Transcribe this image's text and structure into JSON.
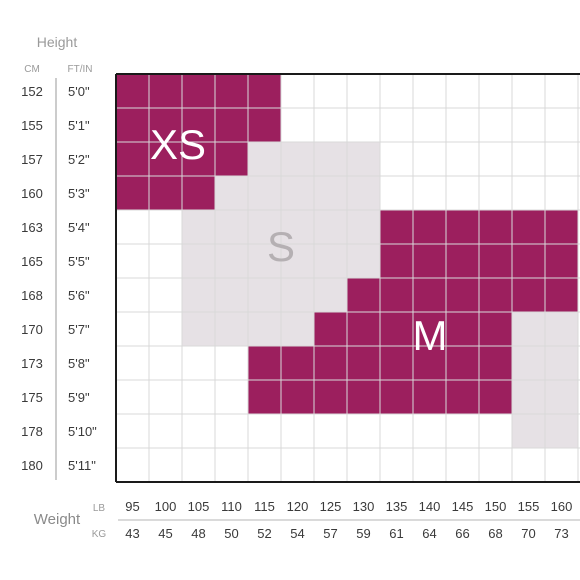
{
  "chart_data": {
    "type": "heatmap",
    "title": "",
    "y_axis": {
      "label": "Height",
      "unit_labels": [
        "CM",
        "FT/IN"
      ],
      "cm": [
        "152",
        "155",
        "157",
        "160",
        "163",
        "165",
        "168",
        "170",
        "173",
        "175",
        "178",
        "180"
      ],
      "ft_in": [
        "5'0\"",
        "5'1\"",
        "5'2\"",
        "5'3\"",
        "5'4\"",
        "5'5\"",
        "5'6\"",
        "5'7\"",
        "5'8\"",
        "5'9\"",
        "5'10\"",
        "5'11\""
      ]
    },
    "x_axis": {
      "label": "Weight",
      "unit_labels": [
        "LB",
        "KG"
      ],
      "lb": [
        "95",
        "100",
        "105",
        "110",
        "115",
        "120",
        "125",
        "130",
        "135",
        "140",
        "145",
        "150",
        "155",
        "160"
      ],
      "kg": [
        "43",
        "45",
        "48",
        "50",
        "52",
        "54",
        "57",
        "59",
        "61",
        "64",
        "66",
        "68",
        "70",
        "73"
      ]
    },
    "grid": true,
    "regions": [
      {
        "name": "XS",
        "color": "#9c1f5e",
        "text_color": "#ffffff",
        "rows": [
          {
            "height": "152",
            "lb_from": "95",
            "lb_to": "115"
          },
          {
            "height": "155",
            "lb_from": "95",
            "lb_to": "115"
          },
          {
            "height": "157",
            "lb_from": "95",
            "lb_to": "110"
          },
          {
            "height": "160",
            "lb_from": "95",
            "lb_to": "105"
          }
        ]
      },
      {
        "name": "S",
        "color": "#e6e1e5",
        "text_color": "#b5b0b3",
        "rows": [
          {
            "height": "157",
            "lb_from": "115",
            "lb_to": "130"
          },
          {
            "height": "160",
            "lb_from": "110",
            "lb_to": "130"
          },
          {
            "height": "163",
            "lb_from": "105",
            "lb_to": "130"
          },
          {
            "height": "165",
            "lb_from": "105",
            "lb_to": "130"
          },
          {
            "height": "168",
            "lb_from": "105",
            "lb_to": "125"
          },
          {
            "height": "170",
            "lb_from": "105",
            "lb_to": "120"
          }
        ]
      },
      {
        "name": "M",
        "color": "#9c1f5e",
        "text_color": "#ffffff",
        "rows": [
          {
            "height": "163",
            "lb_from": "135",
            "lb_to": "160"
          },
          {
            "height": "165",
            "lb_from": "135",
            "lb_to": "160"
          },
          {
            "height": "168",
            "lb_from": "130",
            "lb_to": "160"
          },
          {
            "height": "170",
            "lb_from": "125",
            "lb_to": "150"
          },
          {
            "height": "173",
            "lb_from": "115",
            "lb_to": "150"
          },
          {
            "height": "175",
            "lb_from": "115",
            "lb_to": "150"
          }
        ]
      },
      {
        "name": "",
        "color": "#e6e1e5",
        "text_color": "#b5b0b3",
        "rows": [
          {
            "height": "170",
            "lb_from": "155",
            "lb_to": "160"
          },
          {
            "height": "173",
            "lb_from": "155",
            "lb_to": "160"
          },
          {
            "height": "175",
            "lb_from": "155",
            "lb_to": "160"
          },
          {
            "height": "178",
            "lb_from": "155",
            "lb_to": "160"
          }
        ]
      }
    ]
  }
}
